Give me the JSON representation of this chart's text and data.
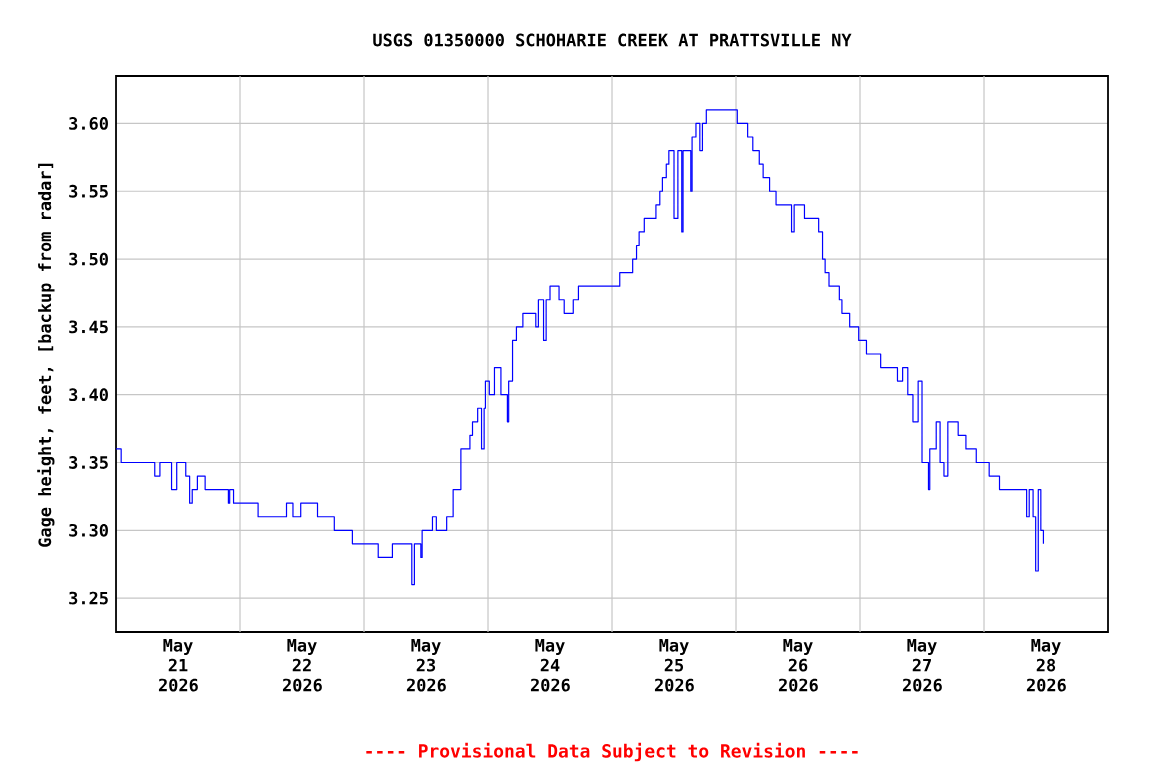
{
  "chart_data": {
    "type": "step",
    "title": "USGS 01350000 SCHOHARIE CREEK AT PRATTSVILLE NY",
    "ylabel": "Gage height, feet, [backup from radar]",
    "annotations": [
      "---- Provisional Data Subject to Revision ----"
    ],
    "x": [
      "2026-05-21T00:00",
      "2026-05-21T01:00",
      "2026-05-21T07:30",
      "2026-05-21T08:30",
      "2026-05-21T10:45",
      "2026-05-21T11:45",
      "2026-05-21T13:30",
      "2026-05-21T14:15",
      "2026-05-21T14:45",
      "2026-05-21T15:45",
      "2026-05-21T17:15",
      "2026-05-21T21:45",
      "2026-05-21T22:00",
      "2026-05-21T22:45",
      "2026-05-22T03:30",
      "2026-05-22T09:00",
      "2026-05-22T10:15",
      "2026-05-22T11:45",
      "2026-05-22T15:00",
      "2026-05-22T18:15",
      "2026-05-22T21:45",
      "2026-05-23T02:45",
      "2026-05-23T05:30",
      "2026-05-23T09:15",
      "2026-05-23T09:45",
      "2026-05-23T11:00",
      "2026-05-23T11:15",
      "2026-05-23T13:15",
      "2026-05-23T14:00",
      "2026-05-23T16:00",
      "2026-05-23T17:15",
      "2026-05-23T18:45",
      "2026-05-23T20:30",
      "2026-05-23T21:00",
      "2026-05-23T22:00",
      "2026-05-23T22:45",
      "2026-05-23T23:15",
      "2026-05-23T23:30",
      "2026-05-24T00:15",
      "2026-05-24T01:15",
      "2026-05-24T02:30",
      "2026-05-24T03:45",
      "2026-05-24T04:00",
      "2026-05-24T04:45",
      "2026-05-24T05:30",
      "2026-05-24T06:45",
      "2026-05-24T09:15",
      "2026-05-24T09:45",
      "2026-05-24T10:45",
      "2026-05-24T11:15",
      "2026-05-24T12:00",
      "2026-05-24T13:45",
      "2026-05-24T14:45",
      "2026-05-24T16:30",
      "2026-05-24T17:30",
      "2026-05-25T01:30",
      "2026-05-25T04:00",
      "2026-05-25T04:45",
      "2026-05-25T05:15",
      "2026-05-25T06:15",
      "2026-05-25T08:30",
      "2026-05-25T09:15",
      "2026-05-25T09:45",
      "2026-05-25T10:30",
      "2026-05-25T11:00",
      "2026-05-25T12:00",
      "2026-05-25T12:45",
      "2026-05-25T13:30",
      "2026-05-25T13:45",
      "2026-05-25T15:15",
      "2026-05-25T15:30",
      "2026-05-25T16:15",
      "2026-05-25T17:00",
      "2026-05-25T17:30",
      "2026-05-25T18:15",
      "2026-05-26T00:15",
      "2026-05-26T02:15",
      "2026-05-26T03:15",
      "2026-05-26T04:30",
      "2026-05-26T05:15",
      "2026-05-26T06:30",
      "2026-05-26T07:45",
      "2026-05-26T10:45",
      "2026-05-26T11:15",
      "2026-05-26T13:15",
      "2026-05-26T16:00",
      "2026-05-26T16:45",
      "2026-05-26T17:15",
      "2026-05-26T18:00",
      "2026-05-26T20:00",
      "2026-05-26T20:30",
      "2026-05-26T22:00",
      "2026-05-26T23:45",
      "2026-05-27T01:15",
      "2026-05-27T04:00",
      "2026-05-27T07:15",
      "2026-05-27T08:15",
      "2026-05-27T09:15",
      "2026-05-27T10:15",
      "2026-05-27T11:15",
      "2026-05-27T12:00",
      "2026-05-27T13:15",
      "2026-05-27T13:30",
      "2026-05-27T14:45",
      "2026-05-27T15:30",
      "2026-05-27T16:15",
      "2026-05-27T17:00",
      "2026-05-27T19:00",
      "2026-05-27T20:30",
      "2026-05-27T22:30",
      "2026-05-28T01:00",
      "2026-05-28T03:00",
      "2026-05-28T08:15",
      "2026-05-28T08:45",
      "2026-05-28T09:30",
      "2026-05-28T10:00",
      "2026-05-28T10:30",
      "2026-05-28T11:00",
      "2026-05-28T11:30"
    ],
    "series": [
      {
        "color": "#0000ff",
        "values": [
          3.36,
          3.35,
          3.34,
          3.35,
          3.33,
          3.35,
          3.34,
          3.32,
          3.33,
          3.34,
          3.33,
          3.32,
          3.33,
          3.32,
          3.31,
          3.32,
          3.31,
          3.32,
          3.31,
          3.3,
          3.29,
          3.28,
          3.29,
          3.26,
          3.29,
          3.28,
          3.3,
          3.31,
          3.3,
          3.31,
          3.33,
          3.36,
          3.37,
          3.38,
          3.39,
          3.36,
          3.39,
          3.41,
          3.4,
          3.42,
          3.4,
          3.38,
          3.41,
          3.44,
          3.45,
          3.46,
          3.45,
          3.47,
          3.44,
          3.47,
          3.48,
          3.47,
          3.46,
          3.47,
          3.48,
          3.49,
          3.5,
          3.51,
          3.52,
          3.53,
          3.54,
          3.55,
          3.56,
          3.57,
          3.58,
          3.53,
          3.58,
          3.52,
          3.58,
          3.55,
          3.59,
          3.6,
          3.58,
          3.6,
          3.61,
          3.6,
          3.59,
          3.58,
          3.57,
          3.56,
          3.55,
          3.54,
          3.52,
          3.54,
          3.53,
          3.52,
          3.5,
          3.49,
          3.48,
          3.47,
          3.46,
          3.45,
          3.44,
          3.43,
          3.42,
          3.41,
          3.42,
          3.4,
          3.38,
          3.41,
          3.35,
          3.33,
          3.36,
          3.38,
          3.35,
          3.34,
          3.38,
          3.37,
          3.36,
          3.35,
          3.34,
          3.33,
          3.31,
          3.33,
          3.31,
          3.27,
          3.33,
          3.3,
          3.29
        ]
      }
    ],
    "xlim": [
      "2026-05-21T00:00",
      "2026-05-29T00:00"
    ],
    "xticks": [
      {
        "value": "2026-05-21T12:00",
        "label": "May 21 2026"
      },
      {
        "value": "2026-05-22T00:00",
        "label": null
      },
      {
        "value": "2026-05-22T12:00",
        "label": "May 22 2026"
      },
      {
        "value": "2026-05-23T00:00",
        "label": null
      },
      {
        "value": "2026-05-23T12:00",
        "label": "May 23 2026"
      },
      {
        "value": "2026-05-24T00:00",
        "label": null
      },
      {
        "value": "2026-05-24T12:00",
        "label": "May 24 2026"
      },
      {
        "value": "2026-05-25T00:00",
        "label": null
      },
      {
        "value": "2026-05-25T12:00",
        "label": "May 25 2026"
      },
      {
        "value": "2026-05-26T00:00",
        "label": null
      },
      {
        "value": "2026-05-26T12:00",
        "label": "May 26 2026"
      },
      {
        "value": "2026-05-27T00:00",
        "label": null
      },
      {
        "value": "2026-05-27T12:00",
        "label": "May 27 2026"
      },
      {
        "value": "2026-05-28T00:00",
        "label": null
      },
      {
        "value": "2026-05-28T12:00",
        "label": "May 28 2026"
      }
    ],
    "ylim": [
      3.225,
      3.635
    ],
    "yticks": [
      {
        "value": 3.25,
        "label": "3.25"
      },
      {
        "value": 3.3,
        "label": "3.30"
      },
      {
        "value": 3.35,
        "label": "3.35"
      },
      {
        "value": 3.4,
        "label": "3.40"
      },
      {
        "value": 3.45,
        "label": "3.45"
      },
      {
        "value": 3.5,
        "label": "3.50"
      },
      {
        "value": 3.55,
        "label": "3.55"
      },
      {
        "value": 3.6,
        "label": "3.60"
      }
    ],
    "grid": true,
    "marker": "none",
    "line_style": "solid"
  }
}
